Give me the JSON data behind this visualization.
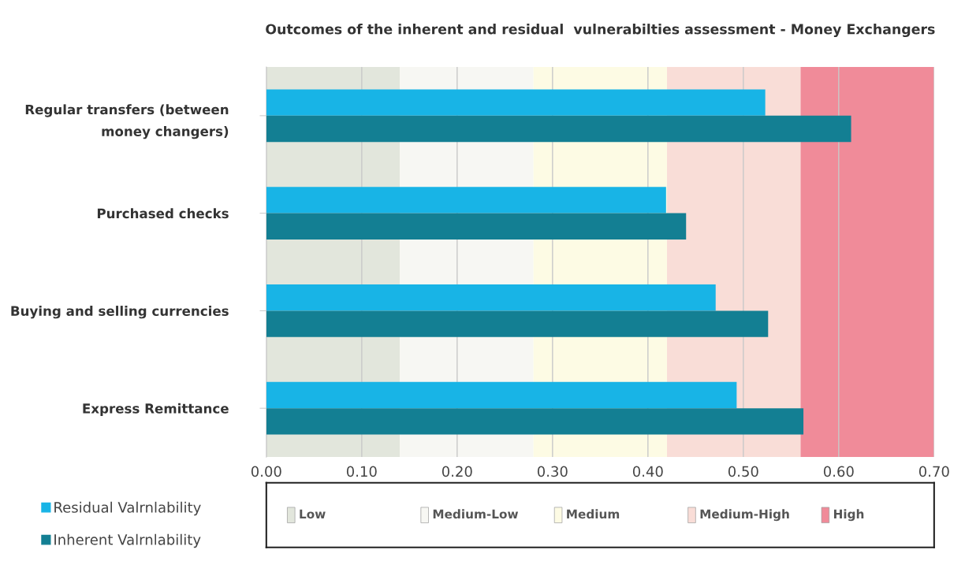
{
  "chart_data": {
    "type": "bar",
    "orientation": "horizontal",
    "title": "Outcomes of the inherent and residual  vulnerabilties assessment - Money Exchangers",
    "categories": [
      "Regular transfers (between\nmoney changers)",
      "Purchased checks",
      "Buying and selling currencies",
      "Express Remittance"
    ],
    "series": [
      {
        "name": "Residual Valrnlability",
        "color": "#18b4e6",
        "values": [
          0.523,
          0.419,
          0.471,
          0.493
        ]
      },
      {
        "name": "Inherent Valrnlability",
        "color": "#137f93",
        "values": [
          0.613,
          0.44,
          0.526,
          0.563
        ]
      }
    ],
    "xlim": [
      0,
      0.7
    ],
    "xticks": [
      {
        "value": 0,
        "label": "0.00"
      },
      {
        "value": 0.1,
        "label": "0.10"
      },
      {
        "value": 0.2,
        "label": "0.20"
      },
      {
        "value": 0.3,
        "label": "0.30"
      },
      {
        "value": 0.4,
        "label": "0.40"
      },
      {
        "value": 0.5,
        "label": "0.50"
      },
      {
        "value": 0.6,
        "label": "0.60"
      },
      {
        "value": 0.7,
        "label": "0.70"
      }
    ],
    "grid": "x",
    "legend": "bottom left",
    "bands": [
      {
        "axis": "x",
        "from": 0,
        "to": 0.14,
        "label": "Low",
        "color": "#e2e6dc"
      },
      {
        "axis": "x",
        "from": 0.14,
        "to": 0.28,
        "label": "Medium-Low",
        "color": "#f7f7f3"
      },
      {
        "axis": "x",
        "from": 0.28,
        "to": 0.42,
        "label": "Medium",
        "color": "#fdfbe4"
      },
      {
        "axis": "x",
        "from": 0.42,
        "to": 0.56,
        "label": "Medium-High",
        "color": "#f9ddd7"
      },
      {
        "axis": "x",
        "from": 0.56,
        "to": 0.7,
        "label": "High",
        "color": "#f08b99"
      }
    ]
  }
}
